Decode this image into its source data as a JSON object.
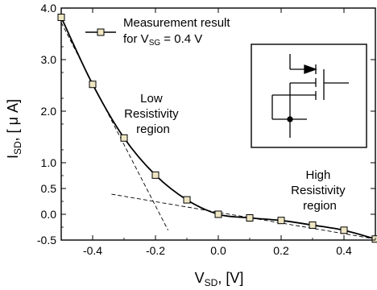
{
  "chart_data": {
    "type": "line",
    "xlabel": {
      "main": "V",
      "sub": "SD",
      "unit": ", [V]"
    },
    "ylabel": {
      "main": "I",
      "sub": "SD",
      "unit": ", [ μ A]"
    },
    "xlim": [
      -0.5,
      0.5
    ],
    "ylim": [
      -0.5,
      4.0
    ],
    "x_ticks": [
      -0.4,
      -0.2,
      0.0,
      0.2,
      0.4
    ],
    "x_tick_labels": [
      "-0.4",
      "-0.2",
      "0.0",
      "0.2",
      "0.4"
    ],
    "y_ticks": [
      -0.5,
      0.0,
      0.5,
      1.0,
      2.0,
      3.0,
      4.0
    ],
    "y_tick_labels": [
      "-0.5",
      "0.0",
      "0.5",
      "1.0",
      "2.0",
      "3.0",
      "4.0"
    ],
    "grid": false,
    "series": [
      {
        "name_line1": "Measurement result",
        "name_line2_pre": "for V",
        "name_line2_sub": "SG",
        "name_line2_post": " = 0.4 V",
        "color": "#000000",
        "marker_fill": "#efe6c4",
        "x": [
          -0.5,
          -0.4,
          -0.3,
          -0.2,
          -0.1,
          0.0,
          0.1,
          0.2,
          0.3,
          0.4,
          0.5
        ],
        "y": [
          3.82,
          2.52,
          1.48,
          0.76,
          0.28,
          0.0,
          -0.07,
          -0.12,
          -0.21,
          -0.31,
          -0.48
        ]
      }
    ],
    "fit_lines": [
      {
        "x": [
          -0.5,
          -0.16
        ],
        "y": [
          3.72,
          -0.31
        ]
      },
      {
        "x": [
          -0.34,
          0.5
        ],
        "y": [
          0.39,
          -0.48
        ]
      }
    ],
    "annotations": [
      {
        "id": "low",
        "lines": [
          "Low",
          "Resistivity",
          "region"
        ],
        "x": -0.2,
        "y": 2.25
      },
      {
        "id": "high",
        "lines": [
          "High",
          "Resistivity",
          "region"
        ],
        "x": 0.34,
        "y": 0.78
      }
    ],
    "legend_placement": "top-left",
    "inset": "transistor-symbol"
  }
}
